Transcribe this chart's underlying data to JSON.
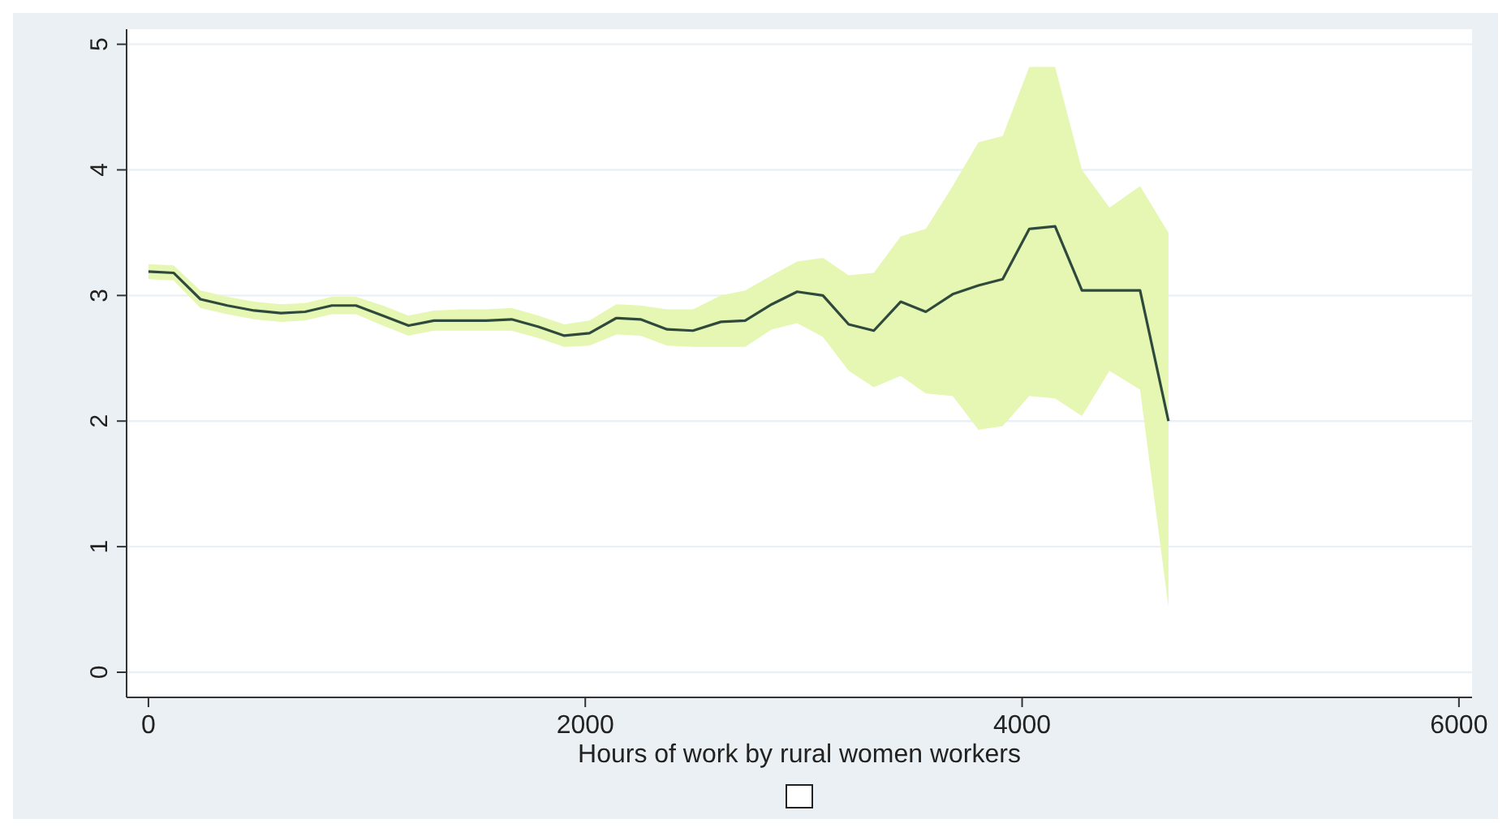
{
  "chart_data": {
    "type": "line",
    "xlabel": "Hours of work by rural women workers",
    "xlim": [
      -100,
      6060
    ],
    "ylim": [
      -0.2,
      5.12
    ],
    "xticks": [
      0,
      2000,
      4000,
      6000
    ],
    "yticks": [
      0,
      1,
      2,
      3,
      4,
      5
    ],
    "grid": "y",
    "marker": "none",
    "line_style": "solid",
    "series": [
      {
        "color": "#2f4a3c",
        "x": [
          0,
          115,
          238,
          361,
          484,
          607,
          717,
          840,
          950,
          1073,
          1191,
          1307,
          1430,
          1547,
          1663,
          1786,
          1904,
          2019,
          2142,
          2253,
          2375,
          2493,
          2621,
          2732,
          2854,
          2970,
          3088,
          3206,
          3321,
          3444,
          3559,
          3682,
          3800,
          3911,
          4033,
          4151,
          4274,
          4400,
          4540,
          4670
        ],
        "values": [
          3.19,
          3.18,
          2.97,
          2.92,
          2.88,
          2.86,
          2.87,
          2.92,
          2.92,
          2.84,
          2.76,
          2.8,
          2.8,
          2.8,
          2.81,
          2.75,
          2.68,
          2.7,
          2.82,
          2.81,
          2.73,
          2.72,
          2.79,
          2.8,
          2.93,
          3.03,
          3.0,
          2.77,
          2.72,
          2.95,
          2.87,
          3.01,
          3.08,
          3.13,
          3.53,
          3.55,
          3.04,
          3.04,
          3.04,
          2.0
        ],
        "upper": [
          3.25,
          3.24,
          3.04,
          2.99,
          2.95,
          2.93,
          2.94,
          2.99,
          2.99,
          2.92,
          2.84,
          2.88,
          2.89,
          2.89,
          2.9,
          2.84,
          2.77,
          2.8,
          2.93,
          2.92,
          2.89,
          2.89,
          3.0,
          3.04,
          3.16,
          3.27,
          3.3,
          3.16,
          3.18,
          3.47,
          3.53,
          3.87,
          4.22,
          4.27,
          4.82,
          4.82,
          4.0,
          3.7,
          3.87,
          3.5
        ],
        "lower": [
          3.13,
          3.12,
          2.9,
          2.85,
          2.81,
          2.79,
          2.8,
          2.85,
          2.85,
          2.76,
          2.68,
          2.72,
          2.72,
          2.72,
          2.72,
          2.66,
          2.59,
          2.6,
          2.69,
          2.68,
          2.6,
          2.59,
          2.59,
          2.59,
          2.73,
          2.78,
          2.67,
          2.4,
          2.27,
          2.36,
          2.22,
          2.2,
          1.93,
          1.96,
          2.2,
          2.18,
          2.04,
          2.4,
          2.25,
          0.52
        ]
      }
    ]
  }
}
